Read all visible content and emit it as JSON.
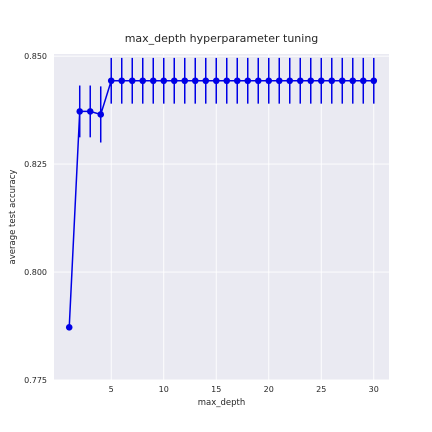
{
  "chart_data": {
    "type": "line",
    "title": "max_depth hyperparameter tuning",
    "xlabel": "max_depth",
    "ylabel": "average test accuracy",
    "xlim": [
      -0.45,
      31.45
    ],
    "ylim": [
      0.775,
      0.8505
    ],
    "xticks": [
      5,
      10,
      15,
      20,
      25,
      30
    ],
    "yticks": [
      0.775,
      0.8,
      0.825,
      0.85
    ],
    "ytick_labels": [
      "0.775",
      "0.800",
      "0.825",
      "0.850"
    ],
    "grid": true,
    "series": [
      {
        "x": [
          1,
          2,
          3,
          4,
          5,
          6,
          7,
          8,
          9,
          10,
          11,
          12,
          13,
          14,
          15,
          16,
          17,
          18,
          19,
          20,
          21,
          22,
          23,
          24,
          25,
          26,
          27,
          28,
          29,
          30
        ],
        "values": [
          0.7872,
          0.8372,
          0.8372,
          0.8365,
          0.8443,
          0.8443,
          0.8443,
          0.8443,
          0.8443,
          0.8443,
          0.8443,
          0.8443,
          0.8443,
          0.8443,
          0.8443,
          0.8443,
          0.8443,
          0.8443,
          0.8443,
          0.8443,
          0.8443,
          0.8443,
          0.8443,
          0.8443,
          0.8443,
          0.8443,
          0.8443,
          0.8443,
          0.8443,
          0.8443
        ],
        "error": [
          0,
          0.006,
          0.006,
          0.0065,
          0.0053,
          0.0053,
          0.0053,
          0.0053,
          0.0053,
          0.0053,
          0.0053,
          0.0053,
          0.0053,
          0.0053,
          0.0053,
          0.0053,
          0.0053,
          0.0053,
          0.0053,
          0.0053,
          0.0053,
          0.0053,
          0.0053,
          0.0053,
          0.0053,
          0.0053,
          0.0053,
          0.0053,
          0.0053,
          0.0053
        ]
      }
    ]
  },
  "colors": {
    "background": "#eaeaf2",
    "grid": "#ffffff",
    "series": "#0000e6",
    "text": "#262626"
  }
}
